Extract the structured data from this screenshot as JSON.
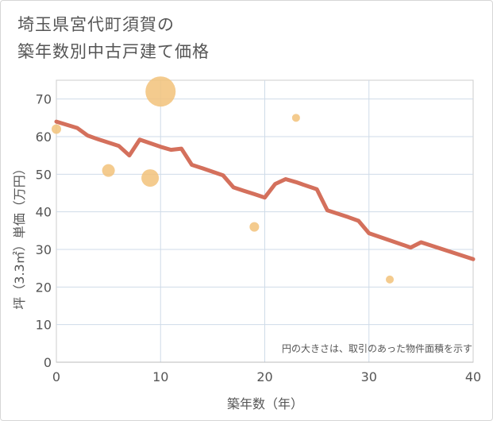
{
  "title_line1": "埼玉県宮代町須賀の",
  "title_line2": "築年数別中古戸建て価格",
  "chart_data": {
    "type": "scatter+line",
    "xlabel": "築年数（年）",
    "ylabel": "坪（3.3㎡）単価（万円）",
    "xlim": [
      0,
      40
    ],
    "ylim": [
      0,
      75
    ],
    "xticks": [
      0,
      10,
      20,
      30,
      40
    ],
    "yticks": [
      0,
      10,
      20,
      30,
      40,
      50,
      60,
      70
    ],
    "grid": true,
    "note": "円の大きさは、取引のあった物件面積を示す",
    "colors": {
      "line": "#d4705c",
      "bubble": "#f2c27a",
      "grid": "#cfdbe8"
    },
    "trend_line": {
      "x": [
        0,
        2,
        3,
        4,
        6,
        7,
        8,
        10,
        11,
        12,
        13,
        14,
        16,
        17,
        18,
        19,
        20,
        21,
        22,
        23,
        25,
        26,
        27,
        28,
        29,
        30,
        34,
        35,
        40
      ],
      "y": [
        64,
        62.3,
        60.3,
        59.3,
        57.5,
        55,
        59.2,
        57.3,
        56.5,
        56.8,
        52.5,
        51.6,
        49.7,
        46.5,
        45.6,
        44.7,
        43.8,
        47.4,
        48.7,
        47.9,
        46,
        40.4,
        39.5,
        38.6,
        37.6,
        34.3,
        30.5,
        31.9,
        27.4
      ]
    },
    "bubbles": [
      {
        "x": 0,
        "y": 62,
        "size": 6
      },
      {
        "x": 5,
        "y": 51,
        "size": 8
      },
      {
        "x": 9,
        "y": 49,
        "size": 11
      },
      {
        "x": 10,
        "y": 72,
        "size": 19
      },
      {
        "x": 19,
        "y": 36,
        "size": 6
      },
      {
        "x": 23,
        "y": 65,
        "size": 5
      },
      {
        "x": 32,
        "y": 22,
        "size": 5
      }
    ]
  }
}
